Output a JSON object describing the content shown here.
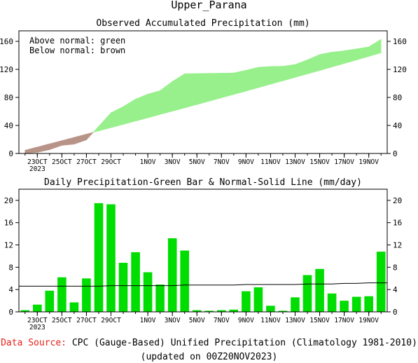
{
  "title": "Upper_Parana",
  "footer": {
    "source_label": "Data Source:",
    "source_text": "CPC (Gauge-Based) Unified Precipitation (Climatology 1981-2010)",
    "updated": "(updated on 00Z20NOV2023)"
  },
  "colors": {
    "above": "#98f08c",
    "below": "#b89488",
    "bar": "#00dd00",
    "source_label": "#e8201a"
  },
  "chart_data": [
    {
      "type": "area",
      "title": "Observed Accumulated Precipitation (mm)",
      "legend": [
        "Above normal: green",
        "Below normal: brown"
      ],
      "legend_placement": "top-left",
      "days": [
        "22OCT",
        "23OCT",
        "24OCT",
        "25OCT",
        "26OCT",
        "27OCT",
        "28OCT",
        "29OCT",
        "30OCT",
        "31OCT",
        "1NOV",
        "2NOV",
        "3NOV",
        "4NOV",
        "5NOV",
        "6NOV",
        "7NOV",
        "8NOV",
        "9NOV",
        "10NOV",
        "11NOV",
        "12NOV",
        "13NOV",
        "14NOV",
        "15NOV",
        "16NOV",
        "17NOV",
        "18NOV",
        "19NOV",
        "20NOV"
      ],
      "x_ticks": [
        "23OCT",
        "25OCT",
        "27OCT",
        "29OCT",
        "1NOV",
        "3NOV",
        "5NOV",
        "7NOV",
        "9NOV",
        "11NOV",
        "13NOV",
        "15NOV",
        "17NOV",
        "19NOV"
      ],
      "x_tick_year": "2023",
      "ylim": [
        0,
        175
      ],
      "yticks": [
        0,
        40,
        80,
        120,
        160
      ],
      "observed": [
        0.3,
        1.6,
        5.4,
        11.6,
        13.3,
        19.3,
        38.8,
        58.1,
        66.9,
        77.6,
        84.7,
        89.6,
        102.8,
        113.8,
        114.1,
        114.3,
        114.6,
        115.0,
        118.7,
        123.1,
        124.2,
        124.4,
        127.0,
        133.6,
        141.3,
        144.6,
        146.6,
        149.3,
        152.1,
        162.9
      ],
      "normal": [
        4.6,
        9.2,
        13.8,
        18.4,
        23.0,
        27.6,
        32.2,
        36.8,
        41.5,
        46.2,
        50.9,
        55.6,
        60.3,
        65.0,
        69.8,
        74.6,
        79.4,
        84.2,
        89.0,
        93.9,
        98.8,
        103.7,
        108.6,
        113.5,
        118.4,
        123.4,
        128.4,
        133.4,
        138.5,
        143.6
      ]
    },
    {
      "type": "bar",
      "title": "Daily Precipitation-Green Bar & Normal-Solid Line (mm/day)",
      "days": [
        "22OCT",
        "23OCT",
        "24OCT",
        "25OCT",
        "26OCT",
        "27OCT",
        "28OCT",
        "29OCT",
        "30OCT",
        "31OCT",
        "1NOV",
        "2NOV",
        "3NOV",
        "4NOV",
        "5NOV",
        "6NOV",
        "7NOV",
        "8NOV",
        "9NOV",
        "10NOV",
        "11NOV",
        "12NOV",
        "13NOV",
        "14NOV",
        "15NOV",
        "16NOV",
        "17NOV",
        "18NOV",
        "19NOV",
        "20NOV"
      ],
      "x_ticks": [
        "23OCT",
        "25OCT",
        "27OCT",
        "29OCT",
        "1NOV",
        "3NOV",
        "5NOV",
        "7NOV",
        "9NOV",
        "11NOV",
        "13NOV",
        "15NOV",
        "17NOV",
        "19NOV"
      ],
      "x_tick_year": "2023",
      "ylim": [
        0,
        22
      ],
      "yticks": [
        0,
        4,
        8,
        12,
        16,
        20
      ],
      "daily": [
        0.3,
        1.3,
        3.8,
        6.2,
        1.7,
        6.0,
        19.5,
        19.3,
        8.8,
        10.7,
        7.1,
        4.9,
        13.2,
        11.0,
        0.3,
        0.2,
        0.3,
        0.4,
        3.7,
        4.4,
        1.1,
        0.2,
        2.6,
        6.6,
        7.7,
        3.3,
        2.0,
        2.7,
        2.8,
        10.8
      ],
      "normal": [
        4.6,
        4.6,
        4.6,
        4.6,
        4.6,
        4.6,
        4.6,
        4.7,
        4.7,
        4.7,
        4.7,
        4.7,
        4.7,
        4.8,
        4.8,
        4.8,
        4.8,
        4.8,
        4.9,
        4.9,
        4.9,
        4.9,
        4.9,
        5.0,
        5.0,
        5.0,
        5.1,
        5.1,
        5.2,
        5.2
      ]
    }
  ]
}
